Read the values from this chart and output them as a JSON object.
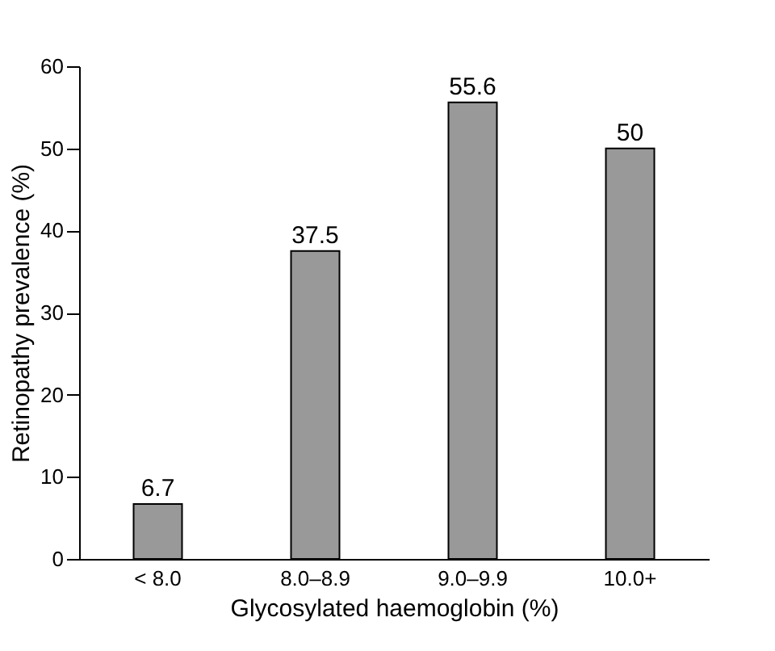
{
  "chart_data": {
    "type": "bar",
    "xlabel": "Glycosylated haemoglobin (%)",
    "ylabel": "Retinopathy prevalence (%)",
    "categories": [
      "< 8.0",
      "8.0–8.9",
      "9.0–9.9",
      "10.0+"
    ],
    "values": [
      6.7,
      37.5,
      55.6,
      50
    ],
    "color": "#999999",
    "ylim": [
      0,
      60
    ],
    "yticks": [
      0,
      10,
      20,
      30,
      40,
      50,
      60
    ],
    "data_labels": true,
    "grid": false
  }
}
